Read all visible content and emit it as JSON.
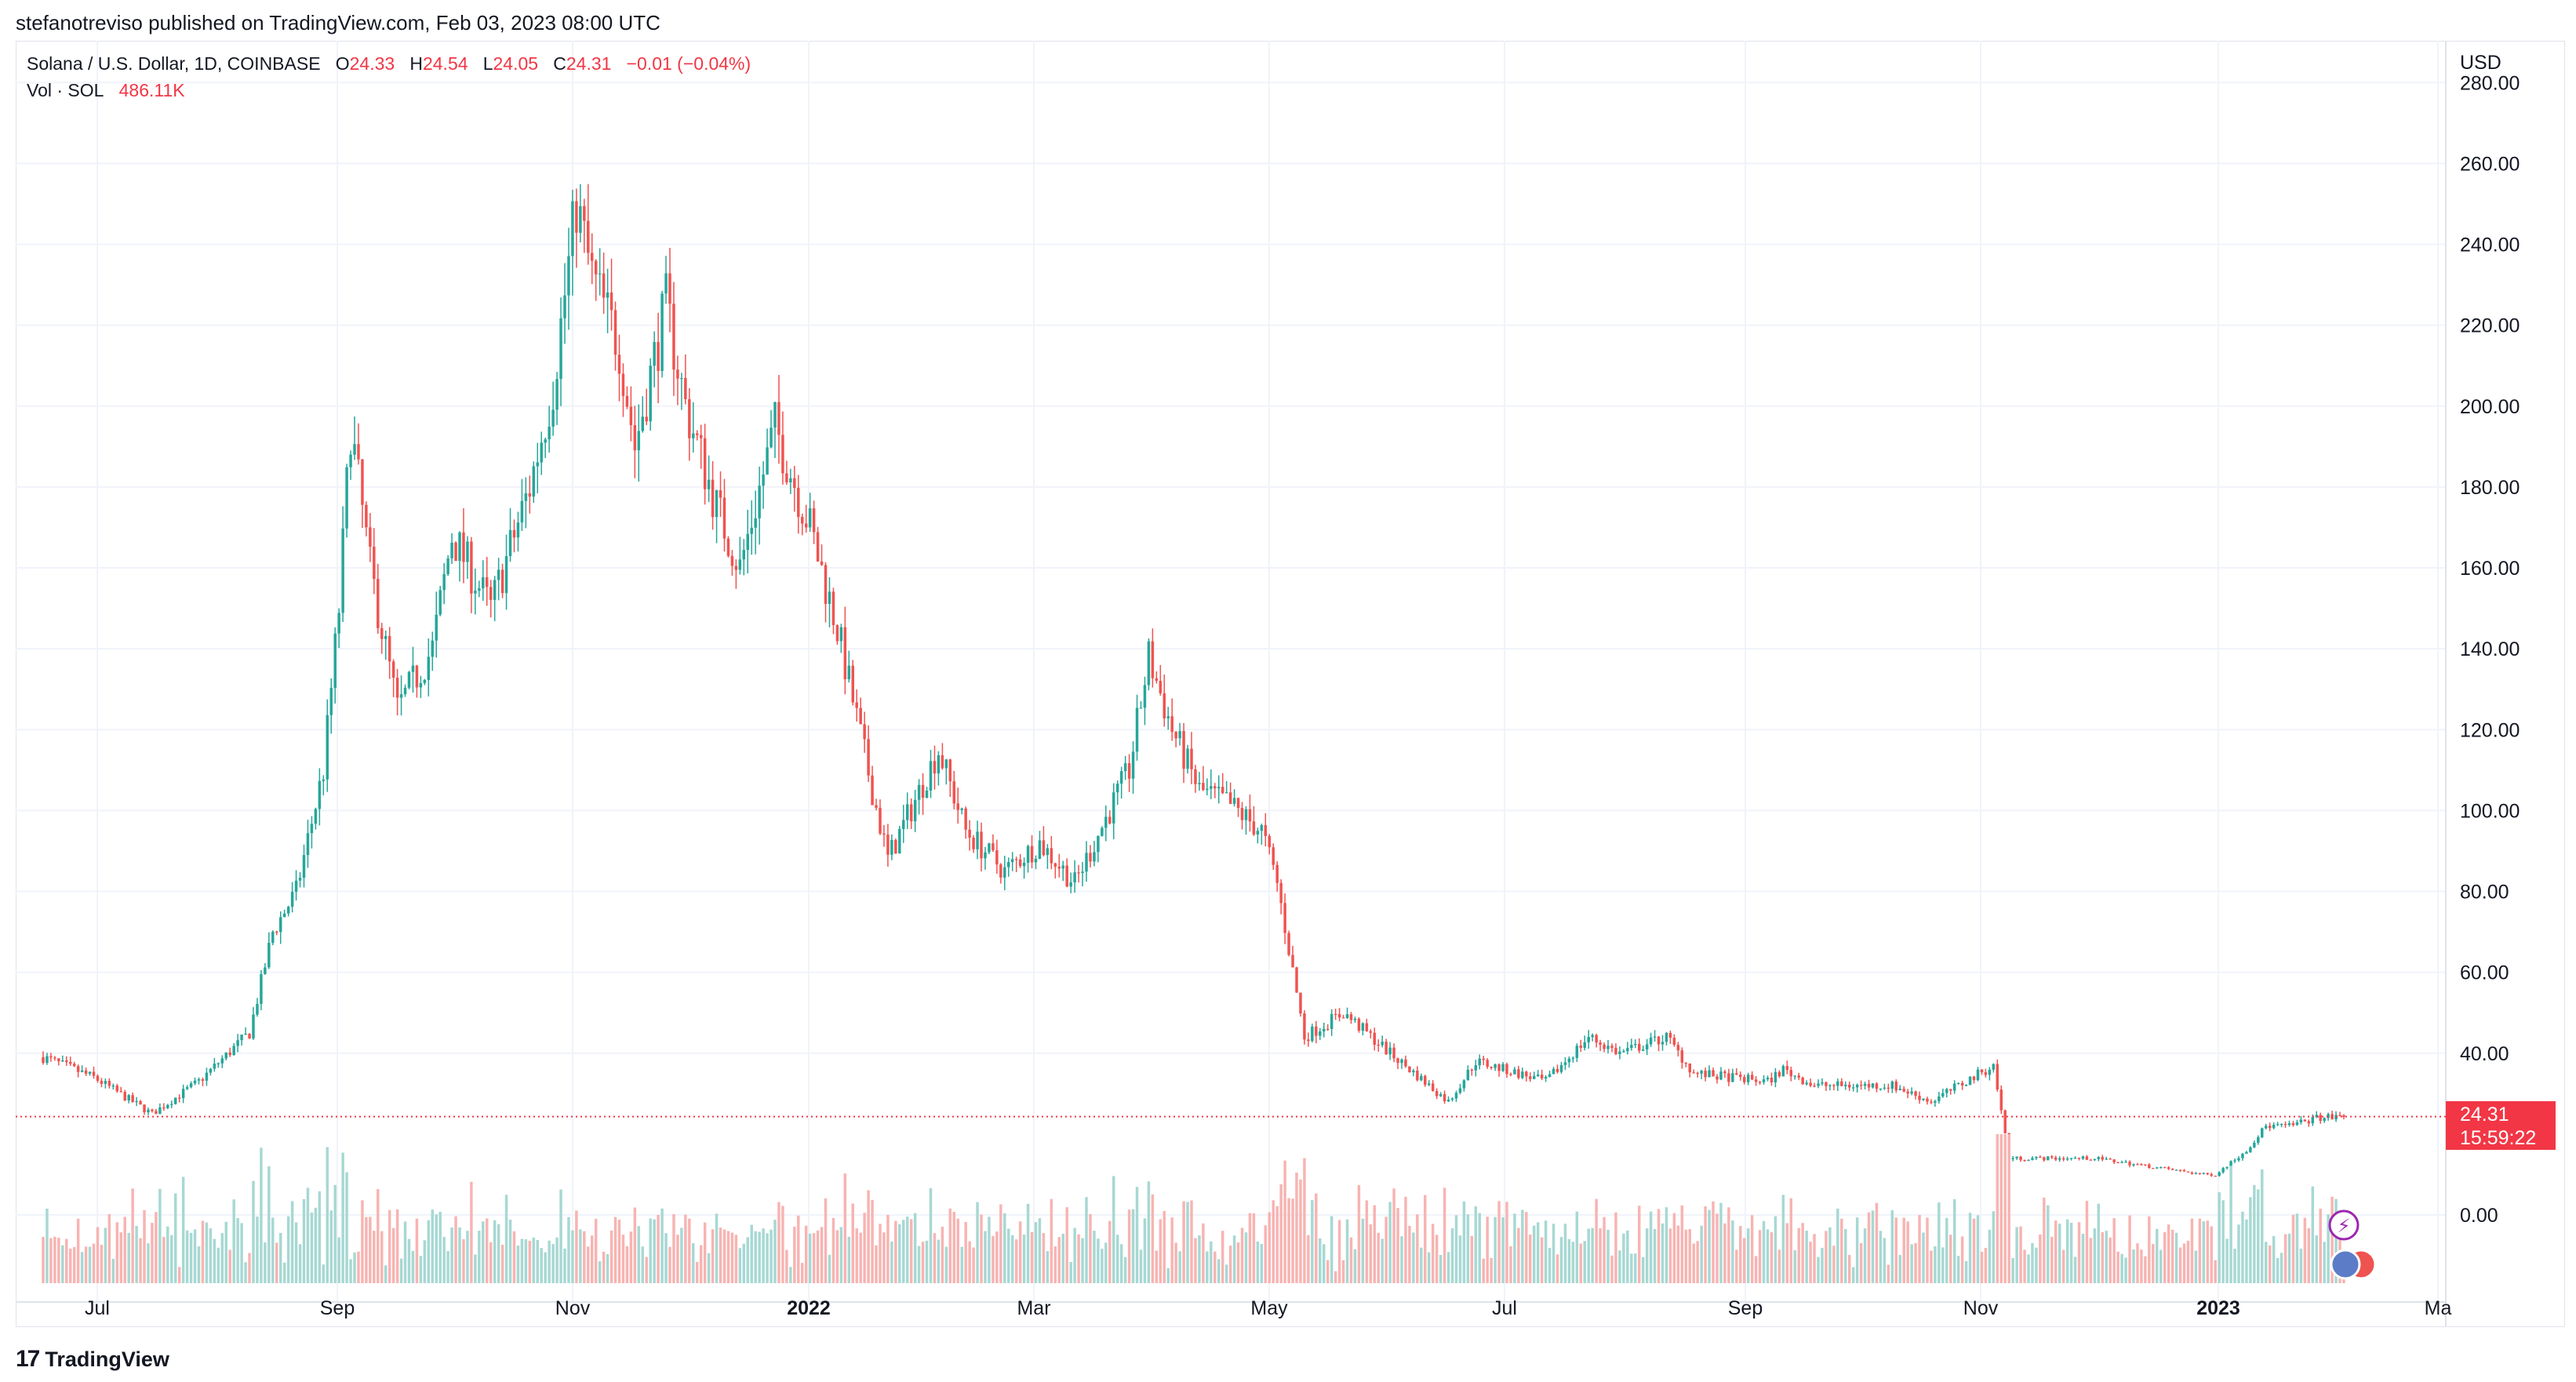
{
  "header": {
    "publish_line": "stefanotreviso published on TradingView.com, Feb 03, 2023 08:00 UTC"
  },
  "legend": {
    "symbol": "Solana / U.S. Dollar, 1D, COINBASE",
    "o_label": "O",
    "o_value": "24.33",
    "h_label": "H",
    "h_value": "24.54",
    "l_label": "L",
    "l_value": "24.05",
    "c_label": "C",
    "c_value": "24.31",
    "change": "−0.01 (−0.04%)",
    "vol_label": "Vol · SOL",
    "vol_value": "486.11K"
  },
  "price_tag": {
    "price": "24.31",
    "countdown": "15:59:22"
  },
  "footer": {
    "brand": "TradingView"
  },
  "colors": {
    "up": "#26a69a",
    "down": "#ef5350",
    "up_vol": "#a7d8d3",
    "down_vol": "#f7b4b2",
    "grid": "#f0f3fa",
    "accent": "#f23645"
  },
  "icons": [
    "lightning-icon",
    "us-flag-icon"
  ],
  "chart_data": {
    "type": "candlestick",
    "title": "Solana / U.S. Dollar, 1D, COINBASE",
    "y_axis_unit": "USD",
    "y_ticks": [
      "280.00",
      "260.00",
      "240.00",
      "220.00",
      "200.00",
      "180.00",
      "160.00",
      "140.00",
      "120.00",
      "100.00",
      "80.00",
      "60.00",
      "40.00",
      "0.00"
    ],
    "x_ticks": [
      "Jul",
      "Sep",
      "Nov",
      "2022",
      "Mar",
      "May",
      "Jul",
      "Sep",
      "Nov",
      "2023",
      "Ma"
    ],
    "x_range": [
      "2021-06-22",
      "2023-02-03"
    ],
    "close_anchors": [
      [
        "2021-06-22",
        39
      ],
      [
        "2021-07-05",
        34
      ],
      [
        "2021-07-20",
        25
      ],
      [
        "2021-08-01",
        33
      ],
      [
        "2021-08-14",
        45
      ],
      [
        "2021-08-20",
        70
      ],
      [
        "2021-08-26",
        80
      ],
      [
        "2021-09-02",
        110
      ],
      [
        "2021-09-06",
        150
      ],
      [
        "2021-09-09",
        195
      ],
      [
        "2021-09-14",
        160
      ],
      [
        "2021-09-21",
        125
      ],
      [
        "2021-09-30",
        140
      ],
      [
        "2021-10-05",
        168
      ],
      [
        "2021-10-15",
        150
      ],
      [
        "2021-10-25",
        180
      ],
      [
        "2021-10-31",
        205
      ],
      [
        "2021-11-06",
        250
      ],
      [
        "2021-11-10",
        232
      ],
      [
        "2021-11-17",
        215
      ],
      [
        "2021-11-21",
        190
      ],
      [
        "2021-11-29",
        225
      ],
      [
        "2021-12-04",
        200
      ],
      [
        "2021-12-12",
        175
      ],
      [
        "2021-12-18",
        160
      ],
      [
        "2021-12-27",
        195
      ],
      [
        "2022-01-05",
        170
      ],
      [
        "2022-01-12",
        145
      ],
      [
        "2022-01-21",
        105
      ],
      [
        "2022-01-25",
        88
      ],
      [
        "2022-02-07",
        115
      ],
      [
        "2022-02-14",
        95
      ],
      [
        "2022-02-24",
        85
      ],
      [
        "2022-03-05",
        92
      ],
      [
        "2022-03-14",
        82
      ],
      [
        "2022-03-28",
        110
      ],
      [
        "2022-04-02",
        138
      ],
      [
        "2022-04-08",
        120
      ],
      [
        "2022-04-15",
        105
      ],
      [
        "2022-04-22",
        102
      ],
      [
        "2022-05-01",
        95
      ],
      [
        "2022-05-05",
        82
      ],
      [
        "2022-05-10",
        55
      ],
      [
        "2022-05-12",
        44
      ],
      [
        "2022-05-22",
        50
      ],
      [
        "2022-06-03",
        40
      ],
      [
        "2022-06-13",
        32
      ],
      [
        "2022-06-18",
        28
      ],
      [
        "2022-06-25",
        38
      ],
      [
        "2022-07-13",
        33
      ],
      [
        "2022-07-24",
        44
      ],
      [
        "2022-08-01",
        40
      ],
      [
        "2022-08-13",
        44
      ],
      [
        "2022-08-20",
        35
      ],
      [
        "2022-09-08",
        33
      ],
      [
        "2022-09-12",
        36
      ],
      [
        "2022-09-20",
        32
      ],
      [
        "2022-10-10",
        32
      ],
      [
        "2022-10-20",
        28
      ],
      [
        "2022-11-05",
        37
      ],
      [
        "2022-11-08",
        20
      ],
      [
        "2022-11-09",
        14
      ],
      [
        "2022-11-13",
        14
      ],
      [
        "2022-12-01",
        14
      ],
      [
        "2022-12-29",
        10
      ],
      [
        "2023-01-01",
        10
      ],
      [
        "2023-01-09",
        16
      ],
      [
        "2023-01-14",
        22
      ],
      [
        "2023-01-20",
        22
      ],
      [
        "2023-01-27",
        24
      ],
      [
        "2023-02-03",
        24.31
      ]
    ],
    "notable_points": {
      "ath_high": 260,
      "ath_date": "2021-11-06",
      "last_close": 24.31,
      "last_volume": "486.11K"
    }
  }
}
